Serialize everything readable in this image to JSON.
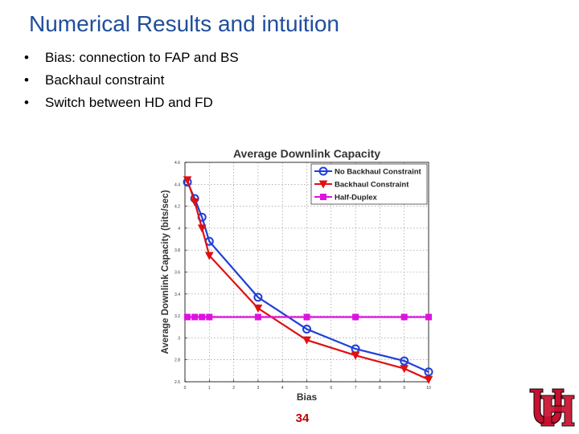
{
  "slide": {
    "title": "Numerical Results and intuition",
    "bullets": [
      "Bias: connection to FAP and BS",
      "Backhaul constraint",
      "Switch between HD and FD"
    ],
    "bullet_char": "•",
    "page_number": "34",
    "title_color": "#1f4e9c",
    "page_number_color": "#c00000"
  },
  "logo": {
    "name": "uh-logo",
    "letters": "UH",
    "color": "#c8102e"
  },
  "chart_data": {
    "type": "line",
    "title": "Average Downlink Capacity",
    "xlabel": "Bias",
    "ylabel": "Average Downlink Capacity (bits/sec)",
    "xlim": [
      0,
      10
    ],
    "ylim": [
      2.6,
      4.6
    ],
    "x_ticks": [
      0,
      1,
      2,
      3,
      4,
      5,
      6,
      7,
      8,
      9,
      10
    ],
    "y_ticks": [
      2.6,
      2.8,
      3.0,
      3.2,
      3.4,
      3.6,
      3.8,
      4.0,
      4.2,
      4.4,
      4.6
    ],
    "x_tick_labels": [
      "0",
      "1",
      "2",
      "3",
      "4",
      "5",
      "6",
      "7",
      "8",
      "9",
      "10"
    ],
    "y_tick_labels": [
      "2.6",
      "2.8",
      "3",
      "3.2",
      "3.4",
      "3.6",
      "3.8",
      "4",
      "4.2",
      "4.4",
      "4.6"
    ],
    "grid": true,
    "legend_position": "top-right",
    "series": [
      {
        "name": "No Backhaul Constraint",
        "color": "#1f3fd6",
        "marker": "circle",
        "x": [
          0.1,
          0.4,
          0.7,
          1,
          3,
          5,
          7,
          9,
          10
        ],
        "y": [
          4.42,
          4.27,
          4.1,
          3.88,
          3.37,
          3.08,
          2.9,
          2.79,
          2.69
        ]
      },
      {
        "name": "Backhaul Constraint",
        "color": "#e01010",
        "marker": "triangle-down",
        "x": [
          0.1,
          0.4,
          0.7,
          1,
          3,
          5,
          7,
          9,
          10
        ],
        "y": [
          4.44,
          4.24,
          4.0,
          3.75,
          3.27,
          2.98,
          2.84,
          2.72,
          2.62
        ]
      },
      {
        "name": "Half-Duplex",
        "color": "#e010e0",
        "marker": "square",
        "x": [
          0.1,
          0.4,
          0.7,
          1,
          3,
          5,
          7,
          9,
          10
        ],
        "y": [
          3.19,
          3.19,
          3.19,
          3.19,
          3.19,
          3.19,
          3.19,
          3.19,
          3.19
        ]
      }
    ]
  }
}
